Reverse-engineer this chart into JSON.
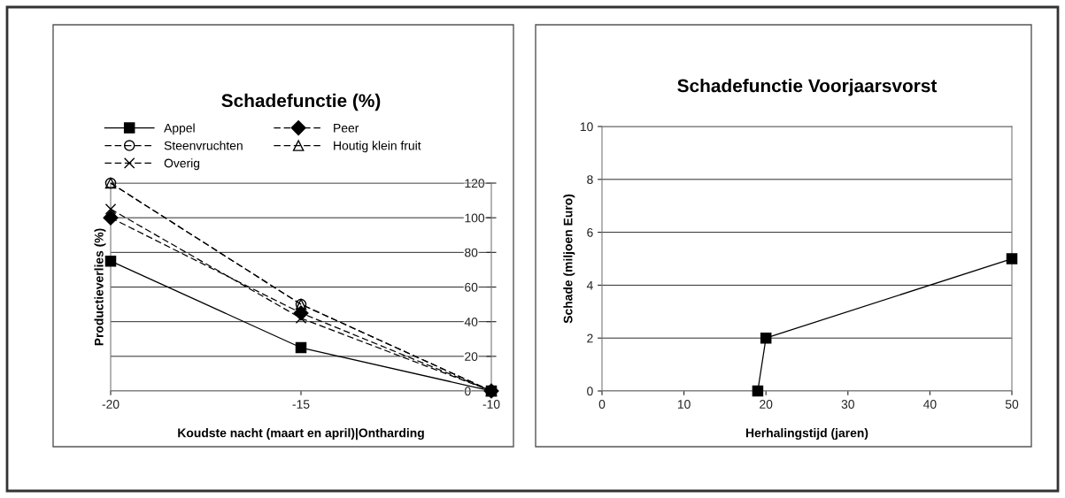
{
  "chart_data": [
    {
      "type": "line",
      "title": "Schadefunctie (%)",
      "xlabel": "Koudste nacht (maart en april)|Ontharding",
      "ylabel": "Productieverlies (%)",
      "x": [
        -20,
        -15,
        -10
      ],
      "xlim": [
        -20,
        -10
      ],
      "xticks": [
        -20,
        -15,
        -10
      ],
      "ylim": [
        0,
        120
      ],
      "yticks": [
        0,
        20,
        40,
        60,
        80,
        100,
        120
      ],
      "grid": "y",
      "legend": "top",
      "series": [
        {
          "name": "Appel",
          "color": "#000000",
          "values": [
            75,
            25,
            0
          ],
          "marker": "square",
          "line_style": "solid"
        },
        {
          "name": "Peer",
          "color": "#000000",
          "values": [
            100,
            45,
            0
          ],
          "marker": "diamond",
          "line_style": "dashed"
        },
        {
          "name": "Steenvruchten",
          "color": "#000000",
          "values": [
            120,
            50,
            0
          ],
          "marker": "circle",
          "line_style": "dashed"
        },
        {
          "name": "Houtig klein fruit",
          "color": "#000000",
          "values": [
            120,
            50,
            0
          ],
          "marker": "triangle",
          "line_style": "dashed"
        },
        {
          "name": "Overig",
          "color": "#000000",
          "values": [
            105,
            42,
            0
          ],
          "marker": "cross",
          "line_style": "dashed"
        }
      ]
    },
    {
      "type": "line",
      "title": "Schadefunctie Voorjaarsvorst",
      "xlabel": "Herhalingstijd (jaren)",
      "ylabel": "Schade (miljoen Euro)",
      "x": [
        19,
        20,
        50
      ],
      "xlim": [
        0,
        50
      ],
      "xticks": [
        0,
        10,
        20,
        30,
        40,
        50
      ],
      "ylim": [
        0,
        10
      ],
      "yticks": [
        0,
        2,
        4,
        6,
        8,
        10
      ],
      "grid": "y",
      "legend": false,
      "series": [
        {
          "color": "#000000",
          "values": [
            0,
            2,
            5
          ],
          "marker": "square",
          "line_style": "solid"
        }
      ]
    }
  ]
}
